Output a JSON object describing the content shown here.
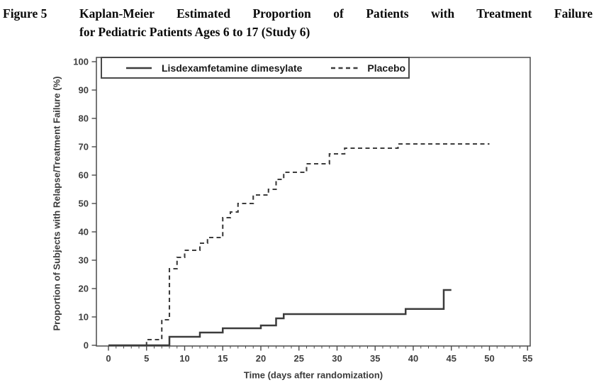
{
  "figure": {
    "label": "Figure 5",
    "title_lines": [
      "Kaplan-Meier Estimated Proportion of Patients with Treatment Failure",
      "for Pediatric Patients Ages 6 to 17 (Study 6)"
    ]
  },
  "legend": {
    "items": [
      {
        "label": "Lisdexamfetamine dimesylate",
        "line_style": "solid"
      },
      {
        "label": "Placebo",
        "line_style": "dashed"
      }
    ]
  },
  "chart_data": {
    "type": "line",
    "subtype": "kaplan-meier-step",
    "title": "",
    "xlabel": "Time (days after randomization)",
    "ylabel": "Proportion of Subjects with Relapse/Treatment Failure (%)",
    "xlim": [
      0,
      55
    ],
    "ylim": [
      0,
      100
    ],
    "x_major_ticks": [
      0,
      5,
      10,
      15,
      20,
      25,
      30,
      35,
      40,
      45,
      50,
      55
    ],
    "x_minor_tick_interval": 1,
    "y_major_ticks": [
      0,
      10,
      20,
      30,
      40,
      50,
      60,
      70,
      80,
      90,
      100
    ],
    "grid": false,
    "legend_position": "top-left-inside",
    "series": [
      {
        "name": "Lisdexamfetamine dimesylate",
        "line_style": "solid",
        "color": "#3c3c3c",
        "steps": [
          [
            0,
            0
          ],
          [
            8,
            3
          ],
          [
            12,
            4.5
          ],
          [
            15,
            6
          ],
          [
            20,
            7
          ],
          [
            22,
            9.5
          ],
          [
            23,
            11
          ],
          [
            39,
            12.8
          ],
          [
            44,
            19.5
          ],
          [
            45,
            19.5
          ]
        ]
      },
      {
        "name": "Placebo",
        "line_style": "dashed",
        "color": "#3c3c3c",
        "steps": [
          [
            0,
            0
          ],
          [
            5,
            2
          ],
          [
            7,
            9
          ],
          [
            8,
            27
          ],
          [
            9,
            31
          ],
          [
            10,
            33.5
          ],
          [
            12,
            36
          ],
          [
            13,
            38
          ],
          [
            15,
            45
          ],
          [
            16,
            47
          ],
          [
            17,
            50
          ],
          [
            19,
            53
          ],
          [
            21,
            55
          ],
          [
            22,
            58.5
          ],
          [
            23,
            61
          ],
          [
            26,
            64
          ],
          [
            29,
            67.5
          ],
          [
            31,
            69.5
          ],
          [
            38,
            71
          ],
          [
            50,
            71
          ]
        ]
      }
    ]
  },
  "colors": {
    "curve": "#3c3c3c",
    "axis": "#4a4a4a",
    "tick_text": "#3f3f3f",
    "title_text": "#0a0a0a"
  }
}
